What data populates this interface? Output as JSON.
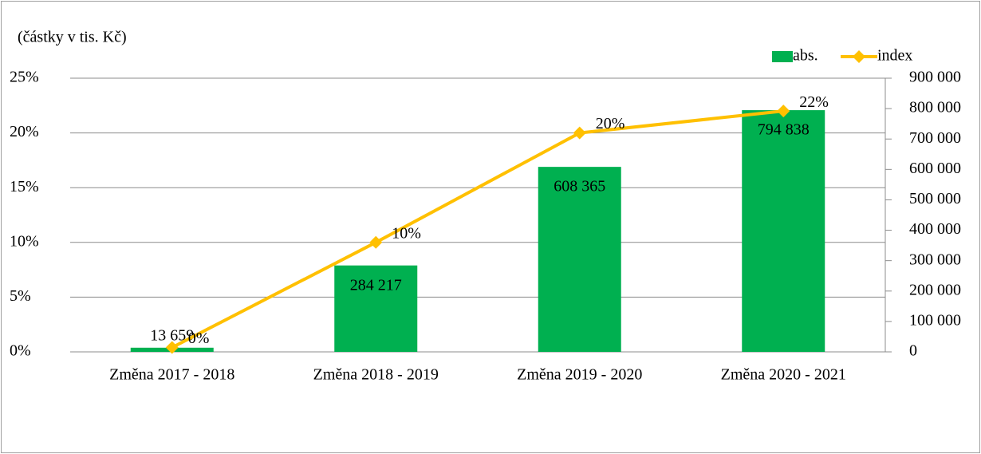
{
  "chart_data": {
    "type": "bar_line",
    "subtitle": "(částky v tis. Kč)",
    "categories": [
      "Změna 2017 - 2018",
      "Změna 2018 - 2019",
      "Změna 2019 - 2020",
      "Změna 2020 - 2021"
    ],
    "series": [
      {
        "name": "abs.",
        "type": "bar",
        "axis": "y2",
        "color": "#00b050",
        "values": [
          13659,
          284217,
          608365,
          794838
        ],
        "value_labels": [
          "13 659",
          "284 217",
          "608 365",
          "794 838"
        ]
      },
      {
        "name": "index",
        "type": "line",
        "axis": "y",
        "color": "#ffc000",
        "values": [
          0.4,
          10,
          20,
          22
        ],
        "value_labels": [
          "0%",
          "10%",
          "20%",
          "22%"
        ]
      }
    ],
    "ylim": [
      0,
      25
    ],
    "yticks": [
      {
        "value": 0,
        "label": "0%"
      },
      {
        "value": 5,
        "label": "5%"
      },
      {
        "value": 10,
        "label": "10%"
      },
      {
        "value": 15,
        "label": "15%"
      },
      {
        "value": 20,
        "label": "20%"
      },
      {
        "value": 25,
        "label": "25%"
      }
    ],
    "y2lim": [
      0,
      900000
    ],
    "y2ticks": [
      0,
      {
        "value": 100000,
        "label": "100 000"
      },
      {
        "value": 200000,
        "label": "200 000"
      },
      {
        "value": 300000,
        "label": "300 000"
      },
      {
        "value": 400000,
        "label": "400 000"
      },
      {
        "value": 500000,
        "label": "500 000"
      },
      {
        "value": 600000,
        "label": "600 000"
      },
      {
        "value": 700000,
        "label": "700 000"
      },
      {
        "value": 800000,
        "label": "800 000"
      },
      {
        "value": 900000,
        "label": "900 000"
      }
    ],
    "grid": true,
    "legend": "top-right"
  }
}
